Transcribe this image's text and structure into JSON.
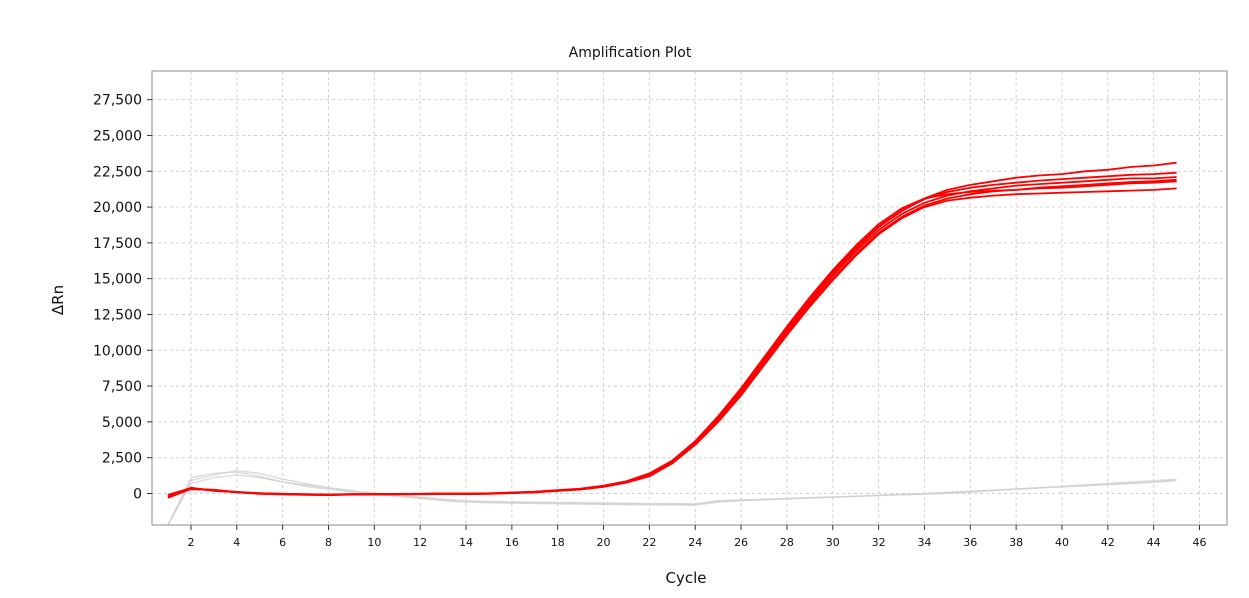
{
  "chart_data": {
    "type": "line",
    "title": "Amplification Plot",
    "xlabel": "Cycle",
    "ylabel": "ΔRn",
    "xlim": [
      0.3,
      47.2
    ],
    "ylim": [
      -2200,
      29500
    ],
    "x_ticks": [
      2,
      4,
      6,
      8,
      10,
      12,
      14,
      16,
      18,
      20,
      22,
      24,
      26,
      28,
      30,
      32,
      34,
      36,
      38,
      40,
      42,
      44,
      46
    ],
    "y_ticks": [
      0,
      2500,
      5000,
      7500,
      10000,
      12500,
      15000,
      17500,
      20000,
      22500,
      25000,
      27500
    ],
    "y_tick_labels": [
      "0",
      "2,500",
      "5,000",
      "7,500",
      "10,000",
      "12,500",
      "15,000",
      "17,500",
      "20,000",
      "22,500",
      "25,000",
      "27,500"
    ],
    "grid": true,
    "legend": "none",
    "colors": {
      "amplified": "#ff0000",
      "background": "#cfcfcf"
    },
    "cycles": [
      1,
      2,
      3,
      4,
      5,
      6,
      7,
      8,
      9,
      10,
      11,
      12,
      13,
      14,
      15,
      16,
      17,
      18,
      19,
      20,
      21,
      22,
      23,
      24,
      25,
      26,
      27,
      28,
      29,
      30,
      31,
      32,
      33,
      34,
      35,
      36,
      37,
      38,
      39,
      40,
      41,
      42,
      43,
      44,
      45
    ],
    "series": [
      {
        "group": "amplified",
        "values": [
          -200,
          350,
          200,
          100,
          0,
          -50,
          -80,
          -100,
          -50,
          -50,
          -50,
          -30,
          -20,
          -20,
          -10,
          50,
          100,
          200,
          300,
          500,
          800,
          1300,
          2200,
          3500,
          5200,
          7100,
          9200,
          11300,
          13300,
          15200,
          16900,
          18400,
          19500,
          20300,
          20800,
          21100,
          21300,
          21500,
          21600,
          21700,
          21800,
          21900,
          22000,
          22000,
          22100
        ]
      },
      {
        "group": "amplified",
        "values": [
          -150,
          300,
          250,
          100,
          20,
          -30,
          -60,
          -90,
          -60,
          -50,
          -40,
          -30,
          -10,
          -10,
          0,
          60,
          110,
          220,
          320,
          520,
          820,
          1350,
          2250,
          3600,
          5300,
          7250,
          9400,
          11500,
          13550,
          15450,
          17150,
          18650,
          19750,
          20550,
          21050,
          21350,
          21550,
          21700,
          21850,
          21950,
          22050,
          22150,
          22250,
          22300,
          22400
        ]
      },
      {
        "group": "amplified",
        "values": [
          -250,
          400,
          180,
          90,
          -10,
          -40,
          -70,
          -100,
          -70,
          -60,
          -50,
          -40,
          -20,
          -30,
          -10,
          40,
          90,
          190,
          290,
          480,
          780,
          1250,
          2150,
          3450,
          5100,
          6950,
          9050,
          11150,
          13150,
          15000,
          16700,
          18200,
          19300,
          20100,
          20600,
          20900,
          21100,
          21200,
          21350,
          21450,
          21550,
          21650,
          21750,
          21800,
          21900
        ]
      },
      {
        "group": "amplified",
        "values": [
          -100,
          380,
          220,
          110,
          10,
          -20,
          -50,
          -80,
          -40,
          -40,
          -30,
          -20,
          0,
          -10,
          10,
          70,
          130,
          240,
          340,
          550,
          860,
          1400,
          2300,
          3650,
          5400,
          7350,
          9500,
          11650,
          13700,
          15600,
          17300,
          18800,
          19900,
          20600,
          20900,
          21050,
          21150,
          21200,
          21300,
          21350,
          21450,
          21550,
          21650,
          21700,
          21800
        ]
      },
      {
        "group": "amplified",
        "values": [
          -300,
          320,
          260,
          80,
          -20,
          -60,
          -90,
          -110,
          -80,
          -70,
          -60,
          -50,
          -30,
          -40,
          -20,
          30,
          80,
          180,
          280,
          460,
          760,
          1200,
          2100,
          3400,
          5000,
          6850,
          8950,
          11050,
          13050,
          14900,
          16600,
          18100,
          19200,
          20000,
          20450,
          20650,
          20800,
          20900,
          20950,
          21000,
          21050,
          21100,
          21150,
          21200,
          21300
        ]
      },
      {
        "group": "amplified",
        "values": [
          -200,
          360,
          210,
          100,
          0,
          -40,
          -70,
          -90,
          -60,
          -50,
          -40,
          -30,
          -10,
          -20,
          0,
          50,
          100,
          210,
          310,
          510,
          810,
          1320,
          2220,
          3550,
          5250,
          7200,
          9300,
          11400,
          13450,
          15350,
          17050,
          18600,
          19700,
          20600,
          21200,
          21550,
          21800,
          22050,
          22200,
          22300,
          22500,
          22600,
          22800,
          22900,
          23100
        ]
      },
      {
        "group": "background",
        "values": [
          -2200,
          1100,
          1400,
          1500,
          1200,
          800,
          600,
          400,
          200,
          0,
          -100,
          -250,
          -400,
          -500,
          -550,
          -580,
          -600,
          -620,
          -640,
          -660,
          -680,
          -700,
          -700,
          -720,
          -500,
          -450,
          -400,
          -350,
          -300,
          -250,
          -200,
          -150,
          -100,
          -50,
          0,
          100,
          200,
          300,
          400,
          500,
          600,
          700,
          800,
          900,
          1000
        ]
      },
      {
        "group": "background",
        "values": [
          -2200,
          900,
          1300,
          1600,
          1400,
          1000,
          700,
          400,
          200,
          0,
          -150,
          -300,
          -450,
          -550,
          -600,
          -620,
          -650,
          -670,
          -690,
          -710,
          -730,
          -750,
          -760,
          -770,
          -550,
          -480,
          -420,
          -360,
          -300,
          -240,
          -180,
          -120,
          -60,
          0,
          80,
          160,
          240,
          320,
          400,
          480,
          560,
          640,
          720,
          800,
          950
        ]
      },
      {
        "group": "background",
        "values": [
          -2200,
          700,
          1100,
          1300,
          1100,
          800,
          500,
          300,
          100,
          -50,
          -200,
          -350,
          -500,
          -600,
          -650,
          -680,
          -700,
          -720,
          -740,
          -760,
          -780,
          -800,
          -810,
          -820,
          -600,
          -520,
          -440,
          -380,
          -320,
          -260,
          -200,
          -140,
          -80,
          -20,
          60,
          140,
          220,
          300,
          380,
          460,
          540,
          620,
          700,
          780,
          900
        ]
      }
    ]
  }
}
